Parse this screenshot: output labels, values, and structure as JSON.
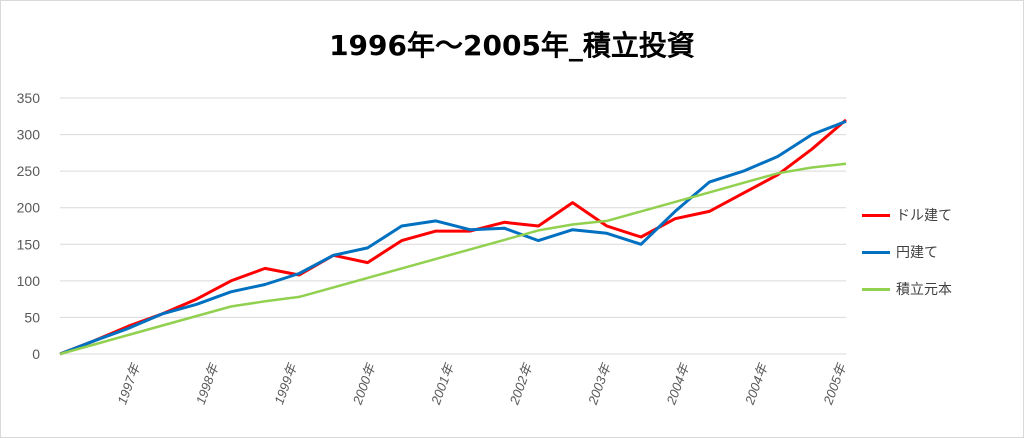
{
  "chart_data": {
    "type": "line",
    "title": "1996年～2005年_積立投資",
    "ylim": [
      0,
      350
    ],
    "yticks": [
      "0",
      "50",
      "100",
      "150",
      "200",
      "250",
      "300",
      "350"
    ],
    "xticks": [
      "1997年",
      "1998年",
      "1999年",
      "2000年",
      "2001年",
      "2002年",
      "2003年",
      "2004年",
      "2004年",
      "2005年"
    ],
    "grid": true,
    "legend_position": "right",
    "x": [
      "1996",
      "1996.5",
      "1997",
      "1997.5",
      "1998",
      "1998.5",
      "1998.8",
      "1999",
      "1999.5",
      "2000",
      "2000.5",
      "2001",
      "2001.5",
      "2002",
      "2002.5",
      "2002.8",
      "2003",
      "2003.5",
      "2004",
      "2004.5",
      "2005",
      "2005.5",
      "2005.8",
      "2006"
    ],
    "series": [
      {
        "name": "ドル建て",
        "color": "#ff0000",
        "values": [
          0,
          18,
          38,
          55,
          75,
          100,
          117,
          108,
          135,
          125,
          155,
          168,
          168,
          180,
          175,
          207,
          175,
          160,
          185,
          195,
          220,
          245,
          280,
          320
        ]
      },
      {
        "name": "円建て",
        "color": "#0070c0",
        "values": [
          0,
          18,
          35,
          55,
          68,
          85,
          95,
          110,
          135,
          145,
          175,
          182,
          170,
          172,
          155,
          170,
          165,
          150,
          195,
          235,
          250,
          270,
          300,
          318
        ]
      },
      {
        "name": "積立元本",
        "color": "#92d050",
        "values": [
          0,
          13,
          26,
          39,
          52,
          65,
          72,
          78,
          91,
          104,
          117,
          130,
          143,
          156,
          169,
          177,
          182,
          195,
          208,
          221,
          234,
          247,
          255,
          260
        ]
      }
    ]
  }
}
